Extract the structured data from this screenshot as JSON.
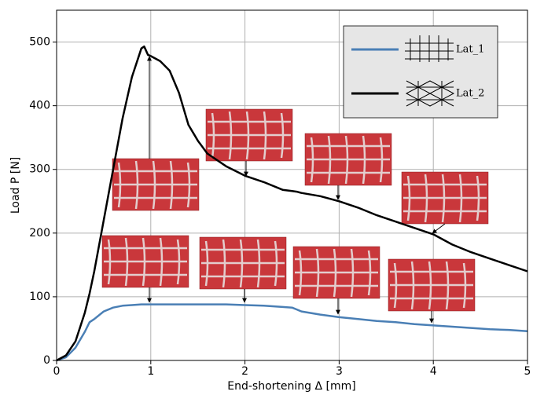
{
  "chart_data": {
    "type": "line",
    "xlabel": "End-shortening Δ [mm]",
    "ylabel": "Load P [N]",
    "x": [
      0,
      0.1,
      0.2,
      0.3,
      0.35,
      0.4,
      0.5,
      0.6,
      0.7,
      0.8,
      0.9,
      0.93,
      0.97,
      1.0,
      1.1,
      1.2,
      1.3,
      1.4,
      1.5,
      1.6,
      1.8,
      2.0,
      2.2,
      2.4,
      2.5,
      2.55,
      2.6,
      2.8,
      3.0,
      3.2,
      3.4,
      3.6,
      3.8,
      4.0,
      4.2,
      4.4,
      4.6,
      4.8,
      5.0
    ],
    "series": [
      {
        "name": "Lat_1",
        "color": "#4a7fb5",
        "values": [
          0,
          5,
          20,
          45,
          60,
          65,
          77,
          83,
          86,
          87,
          88,
          88,
          88,
          88,
          88,
          88,
          88,
          88,
          88,
          88,
          88,
          87,
          86,
          84,
          83,
          80,
          77,
          72,
          68,
          65,
          62,
          60,
          57,
          55,
          53,
          51,
          49,
          48,
          46
        ]
      },
      {
        "name": "Lat_2",
        "color": "#000000",
        "values": [
          0,
          8,
          30,
          75,
          105,
          140,
          220,
          300,
          380,
          445,
          490,
          493,
          480,
          478,
          470,
          455,
          420,
          370,
          345,
          325,
          305,
          290,
          280,
          268,
          266,
          265,
          263,
          258,
          250,
          240,
          228,
          218,
          208,
          198,
          182,
          170,
          160,
          150,
          140
        ]
      }
    ],
    "xlim": [
      0,
      5
    ],
    "xticks": [
      0,
      1,
      2,
      3,
      4,
      5
    ],
    "ylim": [
      0,
      550
    ],
    "yticks": [
      0,
      100,
      200,
      300,
      400,
      500
    ],
    "grid": true,
    "legend": "upper right"
  }
}
